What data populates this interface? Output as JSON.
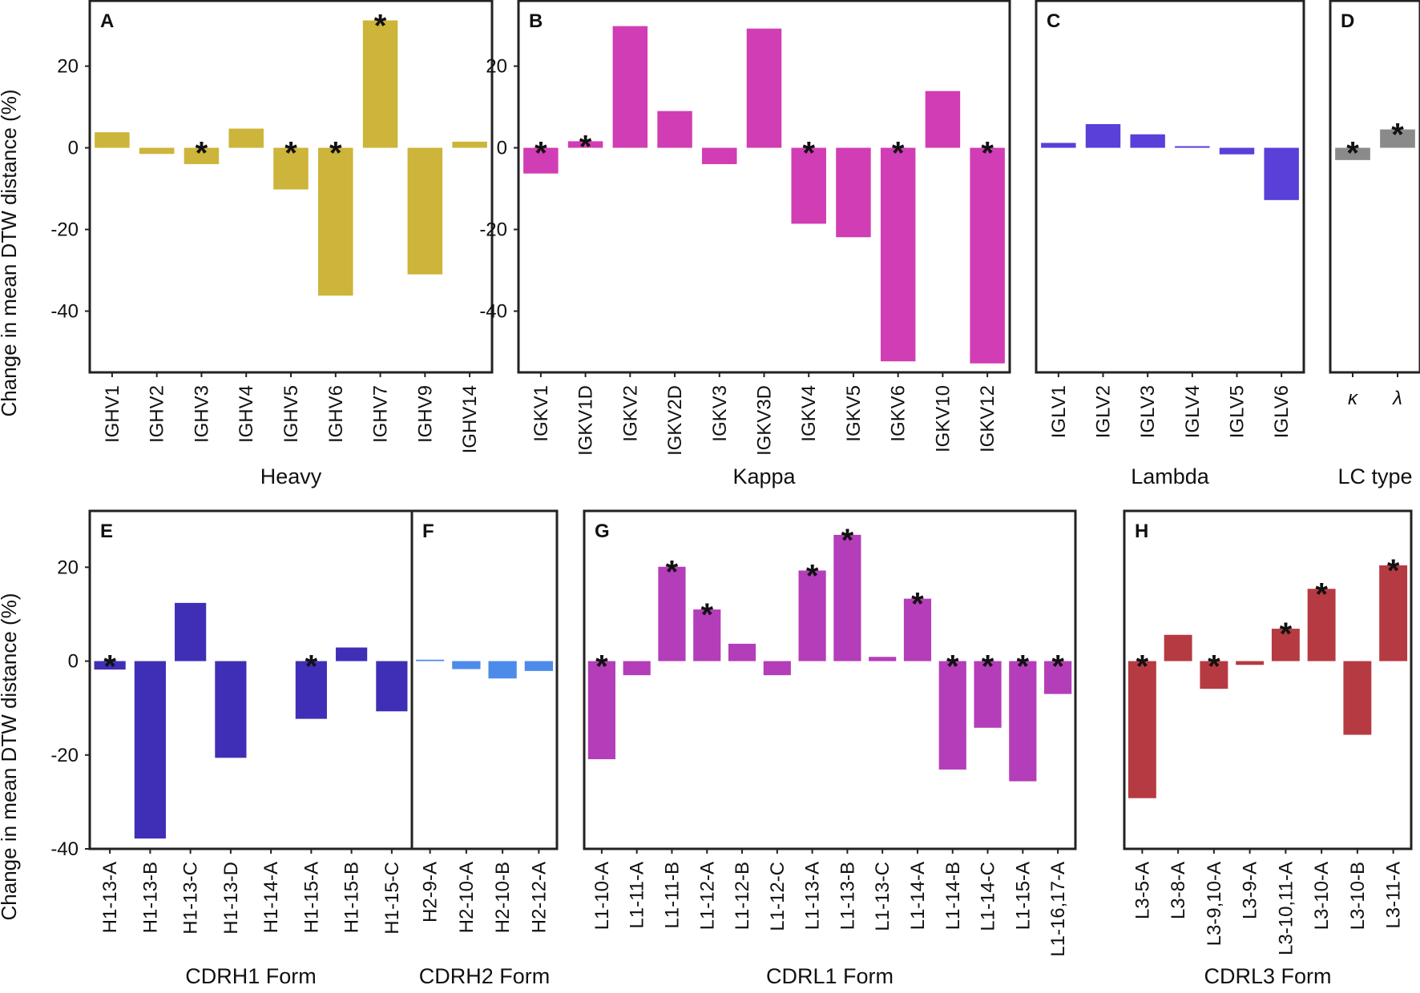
{
  "ylabel": "Change in mean DTW distance (%)",
  "chart_data": [
    {
      "panel": "A",
      "type": "bar",
      "group_label": "Heavy",
      "color": "#CDB43A",
      "ylim": [
        -55,
        36
      ],
      "yticks": [
        20,
        0,
        -20,
        -40
      ],
      "categories": [
        "IGHV1",
        "IGHV2",
        "IGHV3",
        "IGHV4",
        "IGHV5",
        "IGHV6",
        "IGHV7",
        "IGHV9",
        "IGHV14"
      ],
      "values": [
        3.8,
        -1.5,
        -4.0,
        4.7,
        -10.2,
        -36.2,
        31.2,
        -31.0,
        1.5
      ],
      "significant": [
        false,
        false,
        true,
        false,
        true,
        true,
        true,
        false,
        false
      ]
    },
    {
      "panel": "B",
      "type": "bar",
      "group_label": "Kappa",
      "color": "#D13DB4",
      "ylim": [
        -55,
        36
      ],
      "yticks": [
        20,
        0,
        -20,
        -40
      ],
      "categories": [
        "IGKV1",
        "IGKV1D",
        "IGKV2",
        "IGKV2D",
        "IGKV3",
        "IGKV3D",
        "IGKV4",
        "IGKV5",
        "IGKV6",
        "IGKV10",
        "IGKV12"
      ],
      "values": [
        -6.3,
        1.6,
        29.8,
        9.0,
        -4.0,
        29.2,
        -18.6,
        -21.9,
        -52.3,
        13.9,
        -52.8
      ],
      "significant": [
        true,
        true,
        false,
        false,
        false,
        false,
        true,
        false,
        true,
        false,
        true
      ]
    },
    {
      "panel": "C",
      "type": "bar",
      "group_label": "Lambda",
      "color": "#5A3FD9",
      "ylim": [
        -55,
        36
      ],
      "yticks": [],
      "categories": [
        "IGLV1",
        "IGLV2",
        "IGLV3",
        "IGLV4",
        "IGLV5",
        "IGLV6"
      ],
      "values": [
        1.2,
        5.8,
        3.3,
        0.4,
        -1.6,
        -12.8
      ],
      "significant": [
        false,
        false,
        false,
        false,
        false,
        false
      ]
    },
    {
      "panel": "D",
      "type": "bar",
      "group_label": "LC type",
      "color": "#8A8A8A",
      "ylim": [
        -55,
        36
      ],
      "yticks": [],
      "categories": [
        "κ",
        "λ"
      ],
      "values": [
        -3.0,
        4.5
      ],
      "significant": [
        true,
        true
      ]
    },
    {
      "panel": "E",
      "type": "bar",
      "group_label": "CDRH1 Form",
      "color": "#3F2FB6",
      "ylim": [
        -40,
        32
      ],
      "yticks": [
        20,
        0,
        -20,
        -40
      ],
      "categories": [
        "H1-13-A",
        "H1-13-B",
        "H1-13-C",
        "H1-13-D",
        "H1-14-A",
        "H1-15-A",
        "H1-15-B",
        "H1-15-C"
      ],
      "values": [
        -1.8,
        -37.8,
        12.4,
        -20.6,
        0,
        -12.3,
        2.9,
        -10.7
      ],
      "significant": [
        true,
        false,
        false,
        false,
        false,
        true,
        false,
        false
      ]
    },
    {
      "panel": "F",
      "type": "bar",
      "group_label": "CDRH2 Form",
      "color": "#4D8BEA",
      "ylim": [
        -40,
        32
      ],
      "yticks": [],
      "categories": [
        "H2-9-A",
        "H2-10-A",
        "H2-10-B",
        "H2-12-A"
      ],
      "values": [
        0.3,
        -1.7,
        -3.7,
        -2.1
      ],
      "significant": [
        false,
        false,
        false,
        false
      ]
    },
    {
      "panel": "G",
      "type": "bar",
      "group_label": "CDRL1 Form",
      "color": "#B43DB9",
      "ylim": [
        -40,
        32
      ],
      "yticks": [],
      "categories": [
        "L1-10-A",
        "L1-11-A",
        "L1-11-B",
        "L1-12-A",
        "L1-12-B",
        "L1-12-C",
        "L1-13-A",
        "L1-13-B",
        "L1-13-C",
        "L1-14-A",
        "L1-14-B",
        "L1-14-C",
        "L1-15-A",
        "L1-16,17-A"
      ],
      "values": [
        -20.9,
        -3.0,
        20.1,
        11.0,
        3.7,
        -3.0,
        19.3,
        26.9,
        0.9,
        13.3,
        -23.1,
        -14.2,
        -25.6,
        -7.0
      ],
      "significant": [
        true,
        false,
        true,
        true,
        false,
        false,
        true,
        true,
        false,
        true,
        true,
        true,
        true,
        true
      ]
    },
    {
      "panel": "H",
      "type": "bar",
      "group_label": "CDRL3 Form",
      "color": "#B63A42",
      "ylim": [
        -40,
        32
      ],
      "yticks": [],
      "categories": [
        "L3-5-A",
        "L3-8-A",
        "L3-9,10-A",
        "L3-9-A",
        "L3-10,11-A",
        "L3-10-A",
        "L3-10-B",
        "L3-11-A"
      ],
      "values": [
        -29.2,
        5.6,
        -5.9,
        -0.8,
        6.9,
        15.4,
        -15.7,
        20.4
      ],
      "significant": [
        true,
        false,
        true,
        false,
        true,
        true,
        false,
        true
      ]
    }
  ]
}
